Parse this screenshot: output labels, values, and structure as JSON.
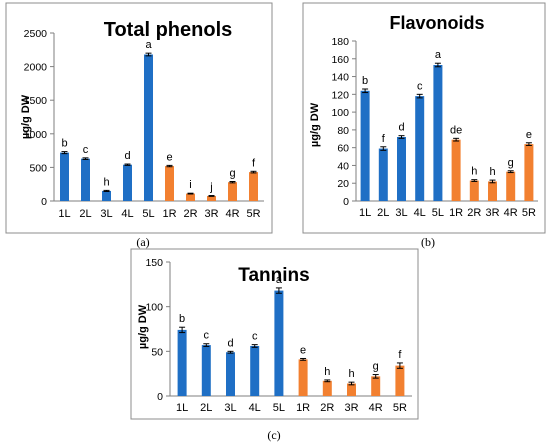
{
  "figure": {
    "panel_labels": [
      "(a)",
      "(b)",
      "(c)"
    ]
  },
  "chart_data": [
    {
      "type": "bar",
      "title": "Total phenols",
      "ylabel": "µg/g DW",
      "xlabel": "",
      "categories": [
        "1L",
        "2L",
        "3L",
        "4L",
        "5L",
        "1R",
        "2R",
        "3R",
        "4R",
        "5R"
      ],
      "values": [
        720,
        630,
        150,
        540,
        2180,
        520,
        110,
        75,
        280,
        430
      ],
      "errors": [
        15,
        12,
        8,
        10,
        20,
        10,
        6,
        6,
        10,
        12
      ],
      "letters": [
        "b",
        "c",
        "h",
        "d",
        "a",
        "e",
        "i",
        "j",
        "g",
        "f"
      ],
      "colors": [
        "#1f6fc5",
        "#1f6fc5",
        "#1f6fc5",
        "#1f6fc5",
        "#1f6fc5",
        "#f28030",
        "#f28030",
        "#f28030",
        "#f28030",
        "#f28030"
      ],
      "ylim": [
        0,
        2500
      ],
      "yticks": [
        "0",
        "500",
        "1000",
        "1500",
        "2000",
        "2500"
      ],
      "grid": false
    },
    {
      "type": "bar",
      "title": "Flavonoids",
      "ylabel": "µg/g DW",
      "xlabel": "",
      "categories": [
        "1L",
        "2L",
        "3L",
        "4L",
        "5L",
        "1R",
        "2R",
        "3R",
        "4R",
        "5R"
      ],
      "values": [
        124,
        59,
        72,
        118,
        153,
        69,
        23,
        22,
        33,
        64
      ],
      "errors": [
        2,
        2,
        1.5,
        2,
        2,
        1.5,
        1,
        1.5,
        1,
        1.5
      ],
      "letters": [
        "b",
        "f",
        "d",
        "c",
        "a",
        "de",
        "h",
        "h",
        "g",
        "e"
      ],
      "colors": [
        "#1f6fc5",
        "#1f6fc5",
        "#1f6fc5",
        "#1f6fc5",
        "#1f6fc5",
        "#f28030",
        "#f28030",
        "#f28030",
        "#f28030",
        "#f28030"
      ],
      "ylim": [
        0,
        180
      ],
      "yticks": [
        "0",
        "20",
        "40",
        "60",
        "80",
        "100",
        "120",
        "140",
        "160",
        "180"
      ],
      "grid": false
    },
    {
      "type": "bar",
      "title": "Tannins",
      "ylabel": "µg/g DW",
      "xlabel": "",
      "categories": [
        "1L",
        "2L",
        "3L",
        "4L",
        "5L",
        "1R",
        "2R",
        "3R",
        "4R",
        "5R"
      ],
      "values": [
        74,
        57,
        49,
        56,
        118,
        41,
        17,
        14,
        22,
        34
      ],
      "errors": [
        3,
        1.5,
        1,
        1.5,
        3,
        1,
        1,
        1.5,
        2,
        3
      ],
      "letters": [
        "b",
        "c",
        "d",
        "c",
        "a",
        "e",
        "h",
        "h",
        "g",
        "f"
      ],
      "colors": [
        "#1f6fc5",
        "#1f6fc5",
        "#1f6fc5",
        "#1f6fc5",
        "#1f6fc5",
        "#f28030",
        "#f28030",
        "#f28030",
        "#f28030",
        "#f28030"
      ],
      "ylim": [
        0,
        150
      ],
      "yticks": [
        "0",
        "50",
        "100",
        "150"
      ],
      "grid": false
    }
  ]
}
